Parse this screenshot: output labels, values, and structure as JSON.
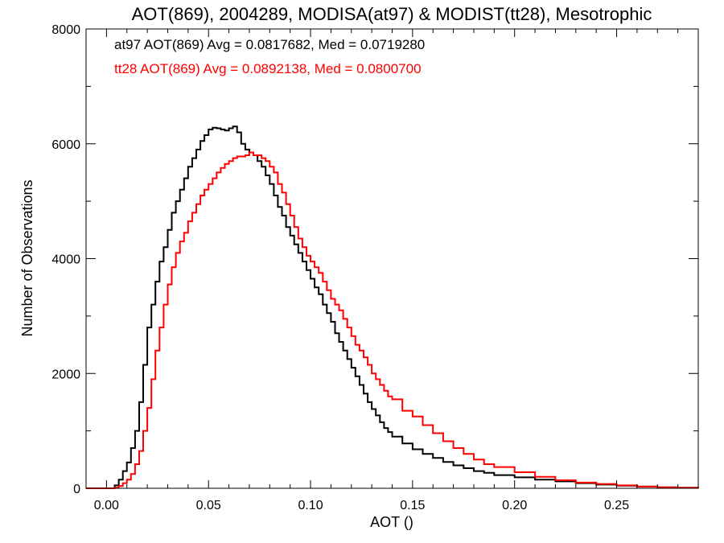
{
  "chart_data": {
    "type": "line",
    "title": "AOT(869), 2004289, MODISA(at97) & MODIST(tt28), Mesotrophic",
    "xlabel": "AOT ()",
    "ylabel": "Number of Observations",
    "xlim": [
      -0.01,
      0.29
    ],
    "ylim": [
      0,
      8000
    ],
    "x_ticks": [
      0.0,
      0.05,
      0.1,
      0.15,
      0.2,
      0.25
    ],
    "x_tick_labels": [
      "0.00",
      "0.05",
      "0.10",
      "0.15",
      "0.20",
      "0.25"
    ],
    "y_ticks": [
      0,
      2000,
      4000,
      6000,
      8000
    ],
    "y_tick_labels": [
      "0",
      "2000",
      "4000",
      "6000",
      "8000"
    ],
    "step": true,
    "grid": false,
    "annotations": [
      {
        "text": "at97 AOT(869) Avg = 0.0817682, Med = 0.0719280",
        "color": "#000000"
      },
      {
        "text": "tt28 AOT(869) Avg = 0.0892138, Med = 0.0800700",
        "color": "#ff0000"
      }
    ],
    "series": [
      {
        "color": "#000000",
        "x": [
          -0.01,
          0.0,
          0.004,
          0.006,
          0.008,
          0.01,
          0.012,
          0.014,
          0.016,
          0.018,
          0.02,
          0.022,
          0.024,
          0.026,
          0.028,
          0.03,
          0.032,
          0.034,
          0.036,
          0.038,
          0.04,
          0.042,
          0.044,
          0.046,
          0.048,
          0.05,
          0.052,
          0.054,
          0.056,
          0.058,
          0.06,
          0.062,
          0.064,
          0.066,
          0.068,
          0.07,
          0.072,
          0.074,
          0.076,
          0.078,
          0.08,
          0.082,
          0.084,
          0.086,
          0.088,
          0.09,
          0.092,
          0.094,
          0.096,
          0.098,
          0.1,
          0.102,
          0.104,
          0.106,
          0.108,
          0.11,
          0.112,
          0.114,
          0.116,
          0.118,
          0.12,
          0.122,
          0.124,
          0.126,
          0.128,
          0.13,
          0.132,
          0.134,
          0.136,
          0.138,
          0.14,
          0.145,
          0.15,
          0.155,
          0.16,
          0.165,
          0.17,
          0.175,
          0.18,
          0.185,
          0.19,
          0.2,
          0.21,
          0.22,
          0.23,
          0.24,
          0.25,
          0.26,
          0.27,
          0.28,
          0.29
        ],
        "values": [
          0,
          0,
          50,
          150,
          300,
          450,
          700,
          1000,
          1500,
          2150,
          2800,
          3200,
          3600,
          3950,
          4200,
          4500,
          4800,
          5000,
          5200,
          5400,
          5600,
          5750,
          5900,
          6050,
          6150,
          6250,
          6280,
          6270,
          6250,
          6230,
          6270,
          6300,
          6200,
          6000,
          5900,
          5850,
          5800,
          5700,
          5600,
          5450,
          5300,
          5100,
          4900,
          4750,
          4550,
          4400,
          4250,
          4100,
          3950,
          3800,
          3650,
          3500,
          3380,
          3200,
          3050,
          2900,
          2700,
          2550,
          2400,
          2250,
          2100,
          1950,
          1800,
          1650,
          1500,
          1380,
          1270,
          1150,
          1050,
          980,
          900,
          780,
          680,
          600,
          530,
          460,
          400,
          350,
          300,
          270,
          230,
          190,
          150,
          120,
          90,
          65,
          45,
          30,
          18,
          10,
          5
        ]
      },
      {
        "color": "#ff0000",
        "x": [
          -0.01,
          0.0,
          0.004,
          0.006,
          0.008,
          0.01,
          0.012,
          0.014,
          0.016,
          0.018,
          0.02,
          0.022,
          0.024,
          0.026,
          0.028,
          0.03,
          0.032,
          0.034,
          0.036,
          0.038,
          0.04,
          0.042,
          0.044,
          0.046,
          0.048,
          0.05,
          0.052,
          0.054,
          0.056,
          0.058,
          0.06,
          0.062,
          0.064,
          0.066,
          0.068,
          0.07,
          0.072,
          0.074,
          0.076,
          0.078,
          0.08,
          0.082,
          0.084,
          0.086,
          0.088,
          0.09,
          0.092,
          0.094,
          0.096,
          0.098,
          0.1,
          0.102,
          0.104,
          0.106,
          0.108,
          0.11,
          0.112,
          0.114,
          0.116,
          0.118,
          0.12,
          0.122,
          0.124,
          0.126,
          0.128,
          0.13,
          0.132,
          0.134,
          0.136,
          0.138,
          0.14,
          0.145,
          0.15,
          0.155,
          0.16,
          0.165,
          0.17,
          0.175,
          0.18,
          0.185,
          0.19,
          0.2,
          0.21,
          0.22,
          0.23,
          0.24,
          0.25,
          0.26,
          0.27,
          0.28,
          0.29
        ],
        "values": [
          0,
          0,
          10,
          40,
          90,
          150,
          250,
          420,
          650,
          1000,
          1400,
          1900,
          2400,
          2800,
          3200,
          3550,
          3850,
          4100,
          4300,
          4450,
          4650,
          4800,
          4950,
          5100,
          5200,
          5300,
          5400,
          5500,
          5580,
          5650,
          5700,
          5750,
          5780,
          5780,
          5800,
          5850,
          5800,
          5800,
          5750,
          5700,
          5600,
          5500,
          5300,
          5150,
          4950,
          4750,
          4550,
          4350,
          4200,
          4050,
          3950,
          3850,
          3750,
          3600,
          3450,
          3300,
          3200,
          3100,
          2950,
          2800,
          2650,
          2500,
          2400,
          2280,
          2150,
          2000,
          1900,
          1800,
          1700,
          1600,
          1550,
          1350,
          1250,
          1100,
          960,
          820,
          700,
          600,
          500,
          420,
          370,
          280,
          200,
          140,
          100,
          75,
          50,
          30,
          15,
          8,
          5
        ]
      }
    ]
  }
}
